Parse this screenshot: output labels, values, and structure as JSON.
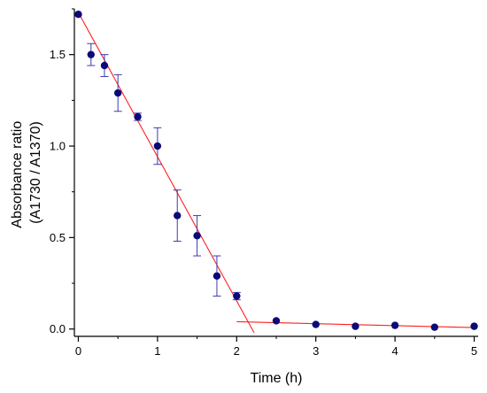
{
  "chart_data": {
    "type": "scatter",
    "xlabel": "Time (h)",
    "ylabel_lines": [
      "Absorbance ratio",
      "(A1730 / A1370)"
    ],
    "xlim": [
      -0.05,
      5.05
    ],
    "ylim": [
      -0.04,
      1.75
    ],
    "x_ticks": [
      0,
      1,
      2,
      3,
      4,
      5
    ],
    "x_tick_labels": [
      "0",
      "1",
      "2",
      "3",
      "4",
      "5"
    ],
    "y_ticks": [
      0.0,
      0.5,
      1.0,
      1.5
    ],
    "y_tick_labels": [
      "0.0",
      "0.5",
      "1.0",
      "1.5"
    ],
    "grid": false,
    "series": [
      {
        "points": [
          {
            "x": 0.0,
            "y": 1.72,
            "err": 0
          },
          {
            "x": 0.16,
            "y": 1.5,
            "err": 0.06
          },
          {
            "x": 0.33,
            "y": 1.44,
            "err": 0.06
          },
          {
            "x": 0.5,
            "y": 1.29,
            "err": 0.1
          },
          {
            "x": 0.75,
            "y": 1.16,
            "err": 0.02
          },
          {
            "x": 1.0,
            "y": 1.0,
            "err": 0.1
          },
          {
            "x": 1.25,
            "y": 0.62,
            "err": 0.14
          },
          {
            "x": 1.5,
            "y": 0.51,
            "err": 0.11
          },
          {
            "x": 1.75,
            "y": 0.29,
            "err": 0.11
          },
          {
            "x": 2.0,
            "y": 0.18,
            "err": 0.02
          },
          {
            "x": 2.5,
            "y": 0.045,
            "err": 0
          },
          {
            "x": 3.0,
            "y": 0.025,
            "err": 0
          },
          {
            "x": 3.5,
            "y": 0.015,
            "err": 0
          },
          {
            "x": 4.0,
            "y": 0.02,
            "err": 0
          },
          {
            "x": 4.5,
            "y": 0.01,
            "err": 0
          },
          {
            "x": 5.0,
            "y": 0.015,
            "err": 0
          }
        ]
      }
    ],
    "fit_lines": [
      {
        "x": [
          0.0,
          2.22
        ],
        "y": [
          1.73,
          -0.02
        ]
      },
      {
        "x": [
          2.0,
          5.0
        ],
        "y": [
          0.04,
          0.008
        ]
      }
    ],
    "colors": {
      "marker": "#0a0a78",
      "errorbar": "#3b3bb0",
      "fit": "#ff2020",
      "axis": "#000000"
    }
  }
}
